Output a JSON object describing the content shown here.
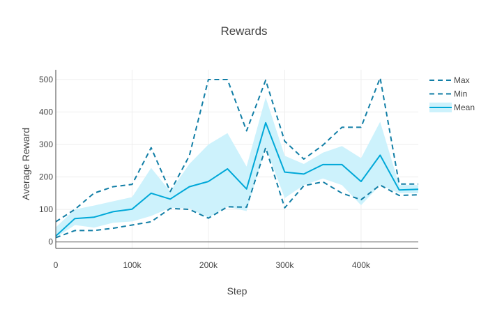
{
  "chart_data": {
    "type": "line",
    "title": "Rewards",
    "xlabel": "Step",
    "ylabel": "Average Reward",
    "xlim": [
      0,
      475000
    ],
    "ylim": [
      -20,
      530
    ],
    "x_ticks": [
      0,
      100000,
      200000,
      300000,
      400000
    ],
    "x_tick_labels": [
      "0",
      "100k",
      "200k",
      "300k",
      "400k"
    ],
    "y_ticks": [
      0,
      100,
      200,
      300,
      400,
      500
    ],
    "y_tick_labels": [
      "0",
      "100",
      "200",
      "300",
      "400",
      "500"
    ],
    "grid": true,
    "legend_position": "top-right",
    "x": [
      0,
      25000,
      50000,
      75000,
      100000,
      125000,
      150000,
      175000,
      200000,
      225000,
      250000,
      275000,
      300000,
      325000,
      350000,
      375000,
      400000,
      425000,
      450000,
      475000
    ],
    "series": [
      {
        "name": "Max",
        "style": "dashed",
        "color": "#117ea6",
        "values": [
          62,
          100,
          150,
          170,
          177,
          290,
          155,
          265,
          500,
          500,
          342,
          498,
          310,
          255,
          298,
          353,
          353,
          505,
          178,
          178
        ]
      },
      {
        "name": "Min",
        "style": "dashed",
        "color": "#117ea6",
        "values": [
          13,
          35,
          35,
          42,
          52,
          62,
          103,
          100,
          73,
          108,
          107,
          290,
          105,
          173,
          185,
          150,
          130,
          175,
          143,
          145
        ]
      },
      {
        "name": "Mean",
        "style": "solid",
        "color": "#00a8d8",
        "values": [
          18,
          72,
          76,
          93,
          101,
          150,
          132,
          170,
          186,
          225,
          163,
          367,
          215,
          209,
          238,
          238,
          186,
          267,
          160,
          162
        ]
      }
    ],
    "band": {
      "color": "#cdf2fc",
      "upper": [
        45,
        100,
        112,
        125,
        138,
        228,
        155,
        240,
        300,
        335,
        232,
        445,
        265,
        240,
        275,
        295,
        258,
        370,
        175,
        175
      ],
      "lower": [
        13,
        52,
        44,
        59,
        63,
        80,
        105,
        103,
        75,
        108,
        95,
        292,
        135,
        175,
        195,
        175,
        113,
        175,
        150,
        150
      ]
    }
  }
}
